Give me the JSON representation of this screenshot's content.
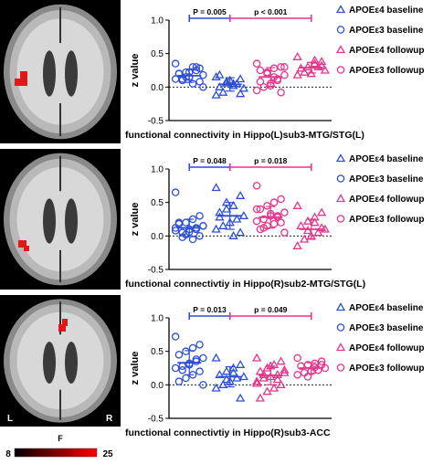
{
  "brain_slices": [
    {
      "sides": {
        "left": "",
        "right": ""
      }
    },
    {
      "sides": {
        "left": "",
        "right": ""
      }
    },
    {
      "sides": {
        "left": "L",
        "right": "R"
      }
    }
  ],
  "colorbar": {
    "label": "F",
    "min": "8",
    "max": "25",
    "colors": [
      "#000000",
      "#ff0000"
    ]
  },
  "groups": [
    "APOEε4 baseline",
    "APOEε3 baseline",
    "APOEε4 followup",
    "APOEε3 followup"
  ],
  "group_colors": [
    "#2d4fd6",
    "#2d4fd6",
    "#e5358c",
    "#e5358c"
  ],
  "group_markers": [
    "triangle",
    "circle",
    "triangle",
    "circle"
  ],
  "chart_data": [
    {
      "type": "scatter",
      "ylabel": "z value",
      "xlabel": "functional connectivity in Hippo(L)sub3-MTG/STG(L)",
      "ylim": [
        -0.5,
        1.0
      ],
      "yticks": [
        "-0.5",
        "0.0",
        "0.5",
        "1.0"
      ],
      "legend": [
        "APOEε4 baseline",
        "APOEε3 baseline",
        "APOEε4 followup",
        "APOEε3 followup"
      ],
      "series_markers": [
        "circle",
        "triangle",
        "circle",
        "triangle"
      ],
      "brackets": [
        {
          "from": 0,
          "to": 1,
          "label": "P = 0.005",
          "color": "#2d4fd6"
        },
        {
          "from": 1,
          "to": 3,
          "label": "p < 0.001",
          "color": "#e5358c"
        }
      ],
      "series": [
        {
          "values": [
            0.35,
            0.28,
            0.3,
            0.22,
            0.2,
            0.18,
            0.25,
            0.15,
            0.1,
            0.12,
            0.08,
            0.05,
            0.15,
            0.2,
            0.0,
            0.3,
            0.22,
            0.12
          ],
          "mean": 0.17,
          "sd": 0.1
        },
        {
          "values": [
            0.15,
            0.12,
            0.05,
            0.08,
            0.0,
            -0.02,
            0.05,
            0.1,
            -0.08,
            -0.12,
            -0.1,
            0.02,
            0.06,
            0.18
          ],
          "mean": 0.04,
          "sd": 0.1
        },
        {
          "values": [
            0.35,
            0.3,
            0.28,
            0.22,
            0.25,
            0.18,
            0.12,
            0.05,
            0.0,
            -0.05,
            -0.08,
            0.15,
            0.2,
            0.08,
            0.3,
            0.1,
            0.02
          ],
          "mean": 0.15,
          "sd": 0.14
        },
        {
          "values": [
            0.45,
            0.38,
            0.35,
            0.3,
            0.28,
            0.25,
            0.3,
            0.2,
            0.22,
            0.18,
            0.32,
            0.4
          ],
          "mean": 0.29,
          "sd": 0.08
        }
      ]
    },
    {
      "type": "scatter",
      "ylabel": "z value",
      "xlabel": "functional connectivtiy in Hippo(R)sub2-MTG/STG(L)",
      "ylim": [
        -0.5,
        1.0
      ],
      "yticks": [
        "-0.5",
        "0.0",
        "0.5",
        "1.0"
      ],
      "legend": [
        "APOEε4 baseline",
        "APOEε3 baseline",
        "APOEε4 followup",
        "APOEε3 followup"
      ],
      "series_markers": [
        "circle",
        "triangle",
        "circle",
        "triangle"
      ],
      "brackets": [
        {
          "from": 0,
          "to": 1,
          "label": "P = 0.048",
          "color": "#2d4fd6"
        },
        {
          "from": 1,
          "to": 3,
          "label": "p = 0.018",
          "color": "#e5358c"
        }
      ],
      "series": [
        {
          "values": [
            0.65,
            0.3,
            0.25,
            0.2,
            0.18,
            0.15,
            0.12,
            0.1,
            0.05,
            0.08,
            0.0,
            -0.05,
            0.02,
            0.2,
            0.15,
            0.1,
            0.06,
            -0.02,
            0.12
          ],
          "mean": 0.12,
          "sd": 0.13
        },
        {
          "values": [
            0.72,
            0.6,
            0.45,
            0.4,
            0.35,
            0.3,
            0.25,
            0.2,
            0.15,
            0.1,
            0.05,
            0.0,
            0.5,
            0.28
          ],
          "mean": 0.3,
          "sd": 0.2
        },
        {
          "values": [
            0.75,
            0.55,
            0.5,
            0.45,
            0.4,
            0.35,
            0.3,
            0.3,
            0.25,
            0.22,
            0.2,
            0.18,
            0.15,
            0.1,
            0.05,
            0.28,
            0.33,
            0.12,
            0.4
          ],
          "mean": 0.28,
          "sd": 0.16
        },
        {
          "values": [
            0.45,
            0.35,
            0.28,
            0.22,
            0.15,
            0.1,
            0.05,
            0.0,
            -0.05,
            -0.15,
            0.12,
            0.2,
            0.08
          ],
          "mean": 0.1,
          "sd": 0.15
        }
      ]
    },
    {
      "type": "scatter",
      "ylabel": "z value",
      "xlabel": "functional  connectivtiy in Hippo(R)sub3-ACC",
      "ylim": [
        -0.5,
        1.0
      ],
      "yticks": [
        "-0.5",
        "0.0",
        "0.5",
        "1.0"
      ],
      "legend": [
        "APOEε4 baseline",
        "APOEε3 baseline",
        "APOEε4 followup",
        "APOEε3 followup"
      ],
      "series_markers": [
        "circle",
        "triangle",
        "triangle",
        "circle"
      ],
      "brackets": [
        {
          "from": 0,
          "to": 1,
          "label": "P = 0.013",
          "color": "#2d4fd6"
        },
        {
          "from": 1,
          "to": 3,
          "label": "p = 0.049",
          "color": "#e5358c"
        }
      ],
      "series": [
        {
          "values": [
            0.72,
            0.6,
            0.55,
            0.5,
            0.45,
            0.4,
            0.35,
            0.3,
            0.28,
            0.25,
            0.2,
            0.15,
            0.1,
            0.05,
            0.0,
            0.38,
            0.32,
            0.22
          ],
          "mean": 0.33,
          "sd": 0.18
        },
        {
          "values": [
            0.4,
            0.3,
            0.25,
            0.2,
            0.15,
            0.12,
            0.1,
            0.05,
            0.0,
            -0.05,
            -0.2,
            0.18,
            0.08
          ],
          "mean": 0.12,
          "sd": 0.15
        },
        {
          "values": [
            0.4,
            0.35,
            0.3,
            0.25,
            0.2,
            0.18,
            0.15,
            0.12,
            0.1,
            0.05,
            0.0,
            -0.05,
            -0.1,
            -0.2,
            0.22,
            0.08,
            0.28,
            0.15,
            0.02
          ],
          "mean": 0.14,
          "sd": 0.14
        },
        {
          "values": [
            0.4,
            0.35,
            0.32,
            0.3,
            0.28,
            0.25,
            0.22,
            0.2,
            0.18,
            0.15,
            0.3,
            0.26,
            0.12
          ],
          "mean": 0.25,
          "sd": 0.08
        }
      ]
    }
  ]
}
